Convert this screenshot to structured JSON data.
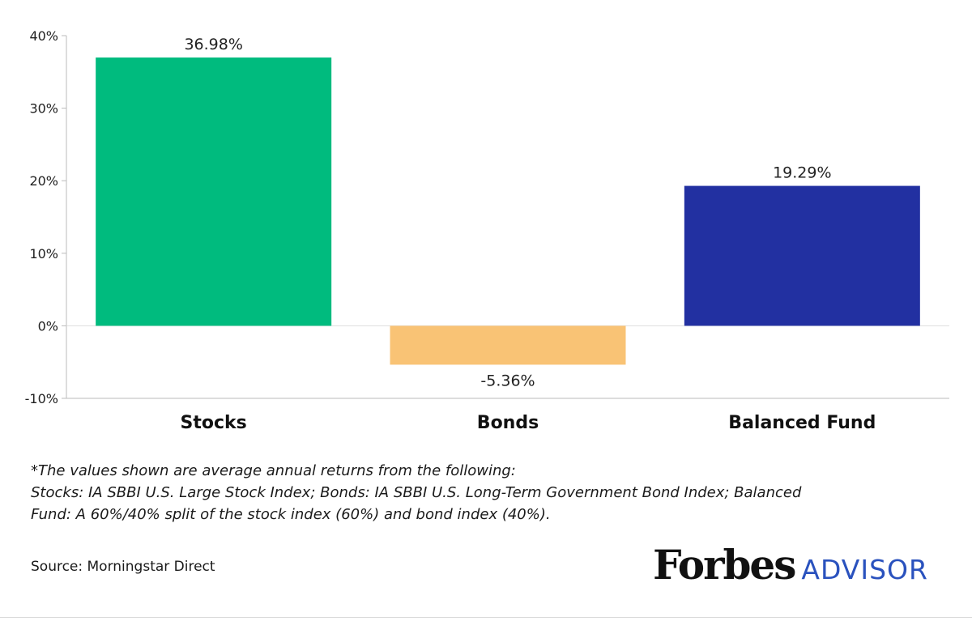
{
  "chart_data": {
    "type": "bar",
    "categories": [
      "Stocks",
      "Bonds",
      "Balanced Fund"
    ],
    "values": [
      36.98,
      -5.36,
      19.29
    ],
    "data_labels": [
      "36.98%",
      "-5.36%",
      "19.29%"
    ],
    "colors": [
      "#00bb7e",
      "#f9c375",
      "#2230a1"
    ],
    "ylim": [
      -10,
      40
    ],
    "yticks": [
      40,
      30,
      20,
      10,
      0,
      -10
    ],
    "ytick_labels": [
      "40%",
      "30%",
      "20%",
      "10%",
      "0%",
      "-10%"
    ],
    "grid": false,
    "xlabel": "",
    "ylabel": ""
  },
  "footnote": {
    "line1": "*The values shown are average annual returns from the following:",
    "line2": "Stocks: IA SBBI U.S. Large Stock Index; Bonds: IA SBBI U.S. Long-Term Government Bond Index; Balanced",
    "line3": "Fund: A 60%/40% split of the stock index (60%) and bond index (40%)."
  },
  "source": "Source: Morningstar Direct",
  "logo": {
    "main": "Forbes",
    "sub": "ADVISOR"
  }
}
